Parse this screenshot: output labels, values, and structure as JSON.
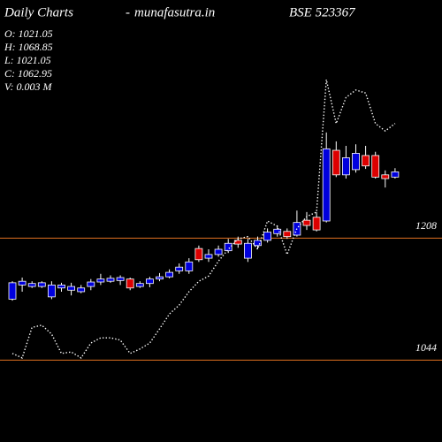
{
  "chart_data": {
    "type": "candlestick",
    "title": "Daily Charts",
    "separator": "-",
    "site": "munafasutra.in",
    "symbol": "BSE 523367",
    "info": [
      {
        "value": 1021.05,
        "label": "O: 1021.05"
      },
      {
        "value": 1068.85,
        "label": "H: 1068.85"
      },
      {
        "value": 1021.05,
        "label": "L: 1021.05"
      },
      {
        "value": 1062.95,
        "label": "C: 1062.95"
      },
      {
        "value": 0.003,
        "label": "V: 0.003 M"
      }
    ],
    "categories": [
      null,
      null,
      null,
      null,
      null,
      null,
      null,
      null,
      null,
      null,
      null,
      null,
      null,
      null,
      null,
      null,
      null,
      null,
      null,
      null,
      null,
      null,
      null,
      null,
      null,
      null,
      null,
      null,
      null,
      null,
      null,
      null,
      null,
      null,
      null,
      null,
      null,
      null,
      null,
      null
    ],
    "candles": {
      "open": [
        1126,
        1145,
        1143,
        1143,
        1129,
        1141,
        1138,
        1136,
        1143,
        1149,
        1150,
        1151,
        1153,
        1143,
        1147,
        1153,
        1156,
        1164,
        1164,
        1194,
        1181,
        1186,
        1191,
        1205,
        1181,
        1198,
        1205,
        1214,
        1217,
        1212,
        1232,
        1236,
        1231,
        1326,
        1293,
        1300,
        1319,
        1319,
        1293,
        1290
      ],
      "high": [
        1150,
        1155,
        1150,
        1150,
        1150,
        1148,
        1148,
        1145,
        1153,
        1160,
        1158,
        1158,
        1155,
        1150,
        1156,
        1161,
        1166,
        1174,
        1181,
        1198,
        1193,
        1198,
        1207,
        1210,
        1207,
        1210,
        1221,
        1225,
        1221,
        1245,
        1243,
        1243,
        1350,
        1338,
        1332,
        1334,
        1332,
        1324,
        1299,
        1302
      ],
      "low": [
        1124,
        1136,
        1141,
        1141,
        1126,
        1136,
        1131,
        1134,
        1138,
        1145,
        1148,
        1145,
        1138,
        1141,
        1142,
        1150,
        1154,
        1160,
        1160,
        1176,
        1176,
        1183,
        1188,
        1195,
        1176,
        1193,
        1202,
        1210,
        1207,
        1210,
        1219,
        1217,
        1229,
        1290,
        1288,
        1296,
        1301,
        1288,
        1276,
        1288
      ],
      "close": [
        1148,
        1150,
        1147,
        1148,
        1145,
        1145,
        1143,
        1141,
        1149,
        1153,
        1154,
        1155,
        1141,
        1147,
        1153,
        1156,
        1162,
        1169,
        1176,
        1179,
        1186,
        1193,
        1201,
        1200,
        1201,
        1205,
        1216,
        1220,
        1210,
        1229,
        1225,
        1219,
        1328,
        1293,
        1316,
        1322,
        1305,
        1290,
        1288,
        1297
      ],
      "up_color": "#0000dd",
      "down_color": "#dd0000",
      "wick_color": "#ffffff"
    },
    "line": {
      "color": "#ffffff",
      "values": [
        1053,
        1047,
        1088,
        1091,
        1079,
        1053,
        1055,
        1047,
        1067,
        1074,
        1074,
        1071,
        1053,
        1059,
        1067,
        1086,
        1106,
        1118,
        1136,
        1150,
        1157,
        1177,
        1193,
        1207,
        1210,
        1193,
        1231,
        1224,
        1186,
        1221,
        1237,
        1243,
        1421,
        1362,
        1397,
        1407,
        1403,
        1362,
        1352,
        1362
      ]
    },
    "ylim": [
      934,
      1528
    ],
    "yticks": [
      1044,
      1208
    ],
    "grid_color": "#e07020"
  }
}
